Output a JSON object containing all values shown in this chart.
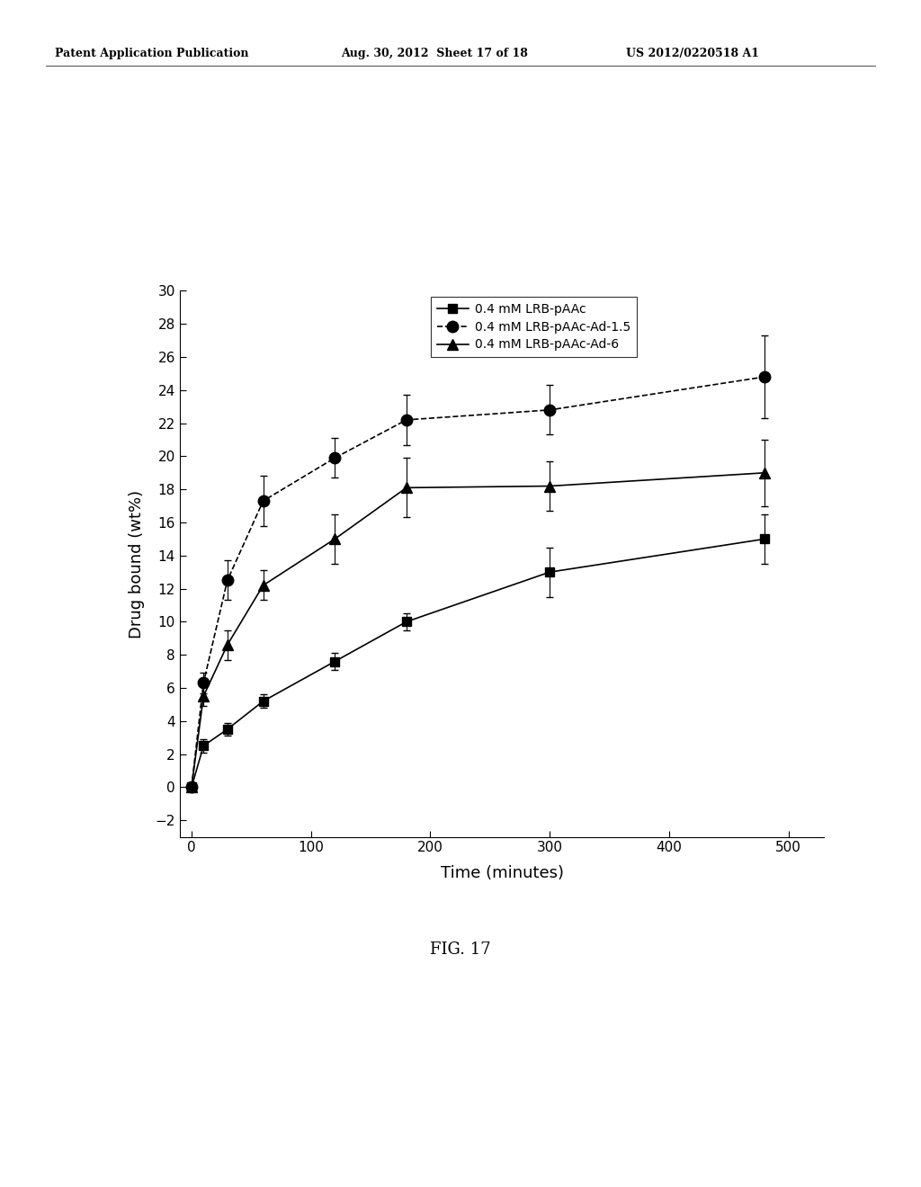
{
  "series1_label": "0.4 mM LRB-pAAc",
  "series2_label": "0.4 mM LRB-pAAc-Ad-1.5",
  "series3_label": "0.4 mM LRB-pAAc-Ad-6",
  "s1_x": [
    0,
    10,
    30,
    60,
    120,
    180,
    300,
    480
  ],
  "s1_y": [
    0,
    2.5,
    3.5,
    5.2,
    7.6,
    10.0,
    13.0,
    15.0
  ],
  "s1_yerr": [
    0.1,
    0.4,
    0.4,
    0.4,
    0.5,
    0.5,
    1.5,
    1.5
  ],
  "s2_x": [
    0,
    10,
    30,
    60,
    120,
    180,
    300,
    480
  ],
  "s2_y": [
    0,
    6.3,
    12.5,
    17.3,
    19.9,
    22.2,
    22.8,
    24.8
  ],
  "s2_yerr": [
    0.1,
    0.6,
    1.2,
    1.5,
    1.2,
    1.5,
    1.5,
    2.5
  ],
  "s3_x": [
    0,
    10,
    30,
    60,
    120,
    180,
    300,
    480
  ],
  "s3_y": [
    0,
    5.5,
    8.6,
    12.2,
    15.0,
    18.1,
    18.2,
    19.0
  ],
  "s3_yerr": [
    0.1,
    0.6,
    0.9,
    0.9,
    1.5,
    1.8,
    1.5,
    2.0
  ],
  "xlabel": "Time (minutes)",
  "ylabel": "Drug bound (wt%)",
  "xlim": [
    -10,
    530
  ],
  "ylim": [
    -3,
    30
  ],
  "yticks": [
    -2,
    0,
    2,
    4,
    6,
    8,
    10,
    12,
    14,
    16,
    18,
    20,
    22,
    24,
    26,
    28,
    30
  ],
  "xticks": [
    0,
    100,
    200,
    300,
    400,
    500
  ],
  "background_color": "#ffffff",
  "line_color": "#000000",
  "header_left": "Patent Application Publication",
  "header_mid": "Aug. 30, 2012  Sheet 17 of 18",
  "header_right": "US 2012/0220518 A1",
  "fig_label": "FIG. 17"
}
